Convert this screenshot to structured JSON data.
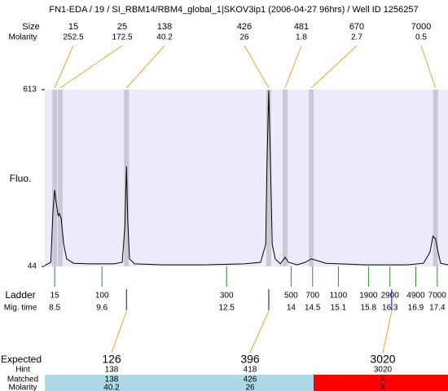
{
  "chart_data": {
    "type": "electropherogram",
    "title": "FN1-EDA / 19 / SI_RBM14/RBM4_global_1|SKOV3ip1 (2006-04-27 96hrs) / Well ID 1256257",
    "size_label": "Size",
    "molarity_label": "Molarity",
    "ylabel": "Fluo.",
    "ylim": [
      44,
      613
    ],
    "yticks": [
      44,
      613
    ],
    "xlim": [
      8.27,
      17.65
    ],
    "plot_color": "#ebebfa",
    "band_color": "#c8c8d6",
    "link_color": "#f0a030",
    "peaks": {
      "sizes": [
        15,
        25,
        138,
        426,
        481,
        670,
        7000
      ],
      "molarity": [
        252.5,
        172.5,
        40.2,
        26,
        1.8,
        2.7,
        0.5
      ],
      "times": [
        8.5,
        8.63,
        10.17,
        13.48,
        13.86,
        14.47,
        17.36
      ]
    },
    "trace": {
      "color": "#000000",
      "x": [
        8.27,
        8.41,
        8.46,
        8.5,
        8.54,
        8.58,
        8.61,
        8.65,
        8.71,
        8.78,
        8.94,
        9.31,
        9.88,
        10.07,
        10.13,
        10.17,
        10.2,
        10.24,
        10.36,
        11.02,
        11.97,
        12.91,
        13.29,
        13.41,
        13.44,
        13.48,
        13.52,
        13.56,
        13.63,
        13.75,
        13.86,
        13.94,
        14.14,
        14.33,
        14.47,
        14.62,
        14.81,
        15.75,
        16.7,
        17.08,
        17.23,
        17.3,
        17.36,
        17.42,
        17.48,
        17.65
      ],
      "y": [
        47,
        57,
        220,
        290,
        246,
        207,
        214,
        199,
        115,
        68,
        54,
        52,
        52,
        57,
        167,
        366,
        194,
        68,
        52,
        49,
        49,
        52,
        57,
        115,
        377,
        610,
        377,
        115,
        68,
        52,
        73,
        57,
        49,
        57,
        68,
        62,
        54,
        49,
        49,
        54,
        89,
        141,
        133,
        89,
        54,
        49
      ]
    },
    "ladder": {
      "label": "Ladder",
      "time_label": "Mig. time",
      "color": "#2e8b2e",
      "sizes": [
        15,
        100,
        300,
        500,
        700,
        1100,
        1900,
        2900,
        4900,
        7000
      ],
      "times": [
        8.5,
        9.6,
        12.5,
        14,
        14.5,
        15.1,
        15.8,
        16.3,
        16.9,
        17.4
      ]
    },
    "expected": {
      "label": "Expected",
      "hint_label": "Hint",
      "matched_label": "Matched",
      "molarity_label": "Molarity",
      "marker_color": "#0000cc",
      "items": [
        {
          "expected": 126,
          "hint": 138,
          "matched": 138,
          "molarity": 40.2,
          "time": 10.17,
          "color": "#e8281e",
          "status_color": "#add8e6"
        },
        {
          "expected": 396,
          "hint": 418,
          "matched": 426,
          "molarity": 26,
          "time": 13.48,
          "color": "#e8281e",
          "status_color": "#add8e6"
        },
        {
          "expected": 3020,
          "hint": 3020,
          "matched": "X",
          "molarity": "X",
          "time": 16.34,
          "color": "#000000",
          "status_color": "#ff0000"
        }
      ]
    }
  }
}
